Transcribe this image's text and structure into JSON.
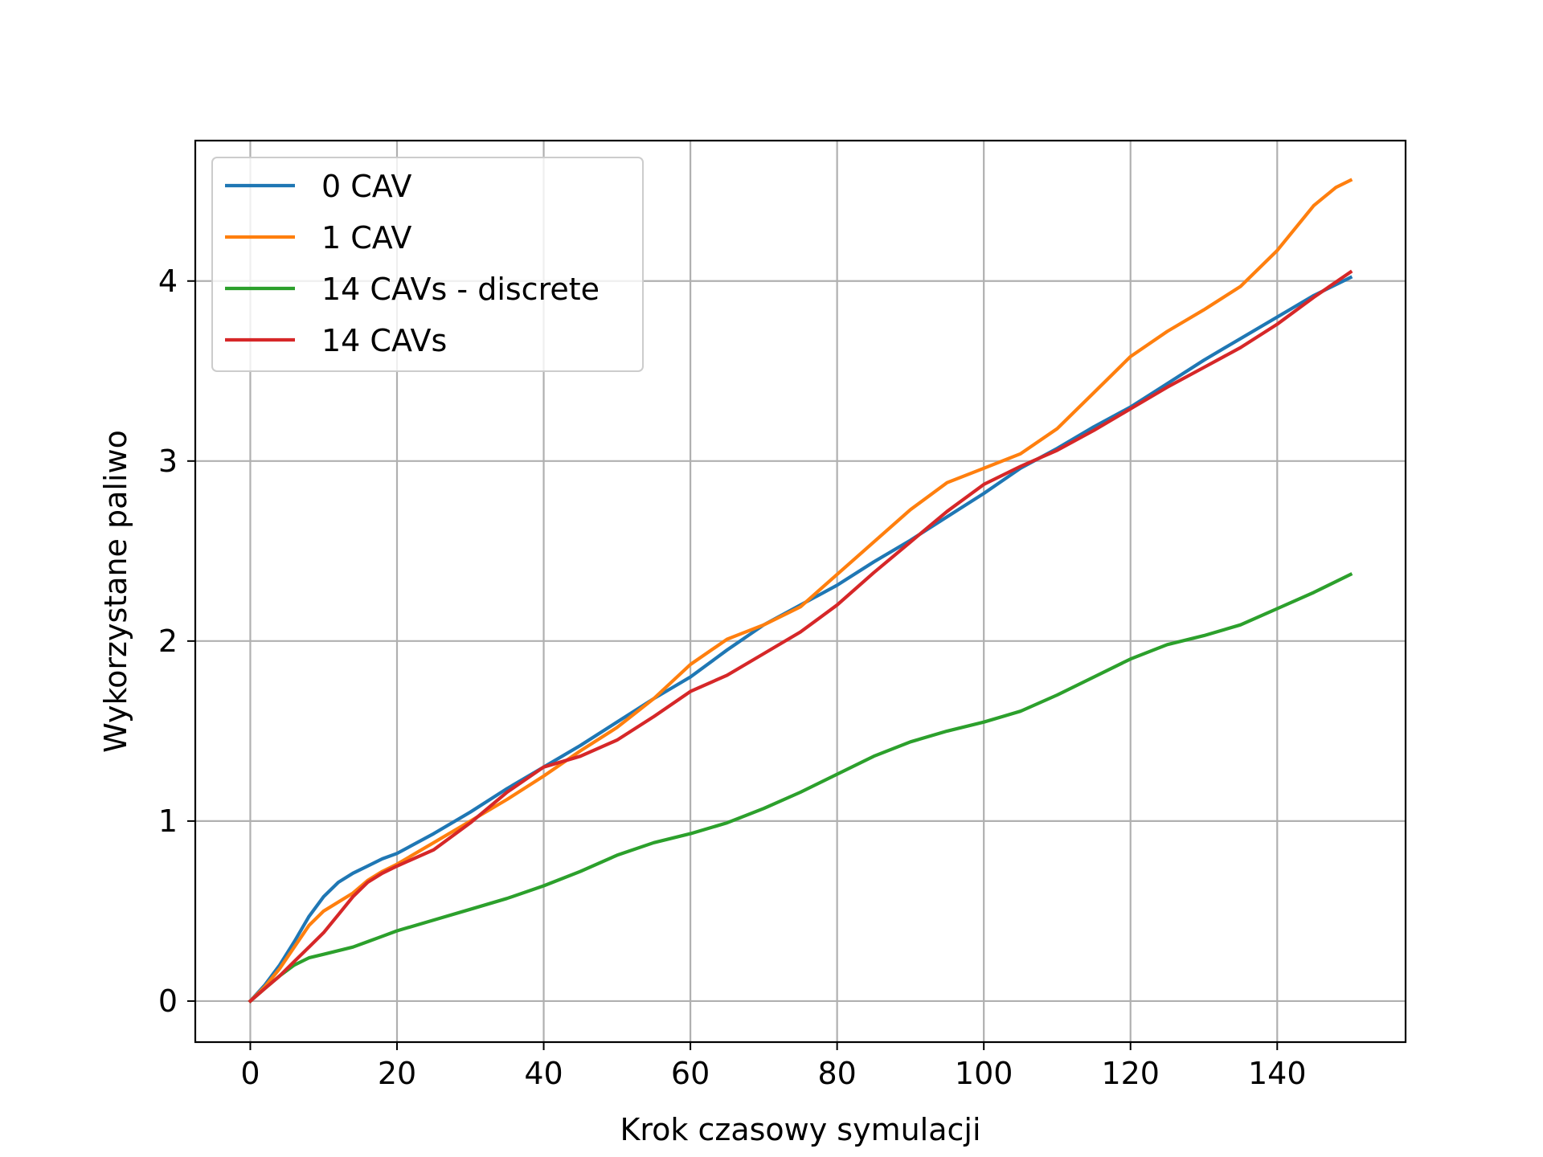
{
  "chart_data": {
    "type": "line",
    "title": "",
    "xlabel": "Krok czasowy symulacji",
    "ylabel": "Wykorzystane paliwo",
    "xlim": [
      -7.5,
      157.5
    ],
    "ylim": [
      -0.228,
      4.78
    ],
    "xticks": [
      0,
      20,
      40,
      60,
      80,
      100,
      120,
      140
    ],
    "yticks": [
      0,
      1,
      2,
      3,
      4
    ],
    "grid": true,
    "legend_position": "upper-left",
    "series": [
      {
        "name": "0 CAV",
        "color": "#1f77b4",
        "x": [
          0,
          2,
          4,
          6,
          8,
          10,
          12,
          14,
          16,
          18,
          20,
          25,
          30,
          35,
          40,
          45,
          50,
          55,
          60,
          65,
          70,
          75,
          80,
          85,
          90,
          95,
          100,
          105,
          110,
          115,
          120,
          125,
          130,
          135,
          140,
          145,
          150
        ],
        "y": [
          0,
          0.09,
          0.2,
          0.33,
          0.47,
          0.58,
          0.66,
          0.71,
          0.75,
          0.79,
          0.82,
          0.93,
          1.05,
          1.18,
          1.3,
          1.42,
          1.55,
          1.68,
          1.8,
          1.95,
          2.09,
          2.2,
          2.31,
          2.44,
          2.56,
          2.69,
          2.82,
          2.96,
          3.07,
          3.19,
          3.3,
          3.43,
          3.56,
          3.68,
          3.8,
          3.92,
          4.02
        ]
      },
      {
        "name": "1 CAV",
        "color": "#ff7f0e",
        "x": [
          0,
          2,
          4,
          6,
          8,
          10,
          12,
          14,
          16,
          18,
          20,
          25,
          30,
          35,
          40,
          45,
          50,
          55,
          60,
          65,
          70,
          75,
          80,
          85,
          90,
          95,
          100,
          105,
          110,
          115,
          120,
          125,
          130,
          135,
          140,
          145,
          148,
          150
        ],
        "y": [
          0,
          0.08,
          0.18,
          0.3,
          0.42,
          0.5,
          0.55,
          0.6,
          0.67,
          0.72,
          0.76,
          0.88,
          1.0,
          1.12,
          1.25,
          1.39,
          1.52,
          1.68,
          1.87,
          2.01,
          2.09,
          2.19,
          2.37,
          2.55,
          2.73,
          2.88,
          2.96,
          3.04,
          3.18,
          3.38,
          3.58,
          3.72,
          3.84,
          3.97,
          4.17,
          4.42,
          4.52,
          4.56
        ]
      },
      {
        "name": "14 CAVs - discrete",
        "color": "#2ca02c",
        "x": [
          0,
          2,
          4,
          6,
          8,
          10,
          12,
          14,
          16,
          18,
          20,
          25,
          30,
          35,
          40,
          45,
          50,
          55,
          60,
          65,
          70,
          75,
          80,
          85,
          90,
          95,
          100,
          105,
          110,
          115,
          120,
          125,
          130,
          135,
          140,
          145,
          150
        ],
        "y": [
          0,
          0.07,
          0.14,
          0.2,
          0.24,
          0.26,
          0.28,
          0.3,
          0.33,
          0.36,
          0.39,
          0.45,
          0.51,
          0.57,
          0.64,
          0.72,
          0.81,
          0.88,
          0.93,
          0.99,
          1.07,
          1.16,
          1.26,
          1.36,
          1.44,
          1.5,
          1.55,
          1.61,
          1.7,
          1.8,
          1.9,
          1.98,
          2.03,
          2.09,
          2.18,
          2.27,
          2.37
        ]
      },
      {
        "name": "14 CAVs",
        "color": "#d62728",
        "x": [
          0,
          2,
          4,
          6,
          8,
          10,
          12,
          14,
          16,
          18,
          20,
          25,
          30,
          35,
          40,
          45,
          50,
          55,
          60,
          65,
          70,
          75,
          80,
          85,
          90,
          95,
          100,
          105,
          110,
          115,
          120,
          125,
          130,
          135,
          140,
          145,
          150
        ],
        "y": [
          0,
          0.07,
          0.14,
          0.22,
          0.3,
          0.38,
          0.48,
          0.58,
          0.66,
          0.71,
          0.75,
          0.84,
          0.99,
          1.16,
          1.3,
          1.36,
          1.45,
          1.58,
          1.72,
          1.81,
          1.93,
          2.05,
          2.2,
          2.38,
          2.55,
          2.72,
          2.87,
          2.97,
          3.06,
          3.17,
          3.29,
          3.41,
          3.52,
          3.63,
          3.76,
          3.91,
          4.05
        ]
      }
    ]
  }
}
